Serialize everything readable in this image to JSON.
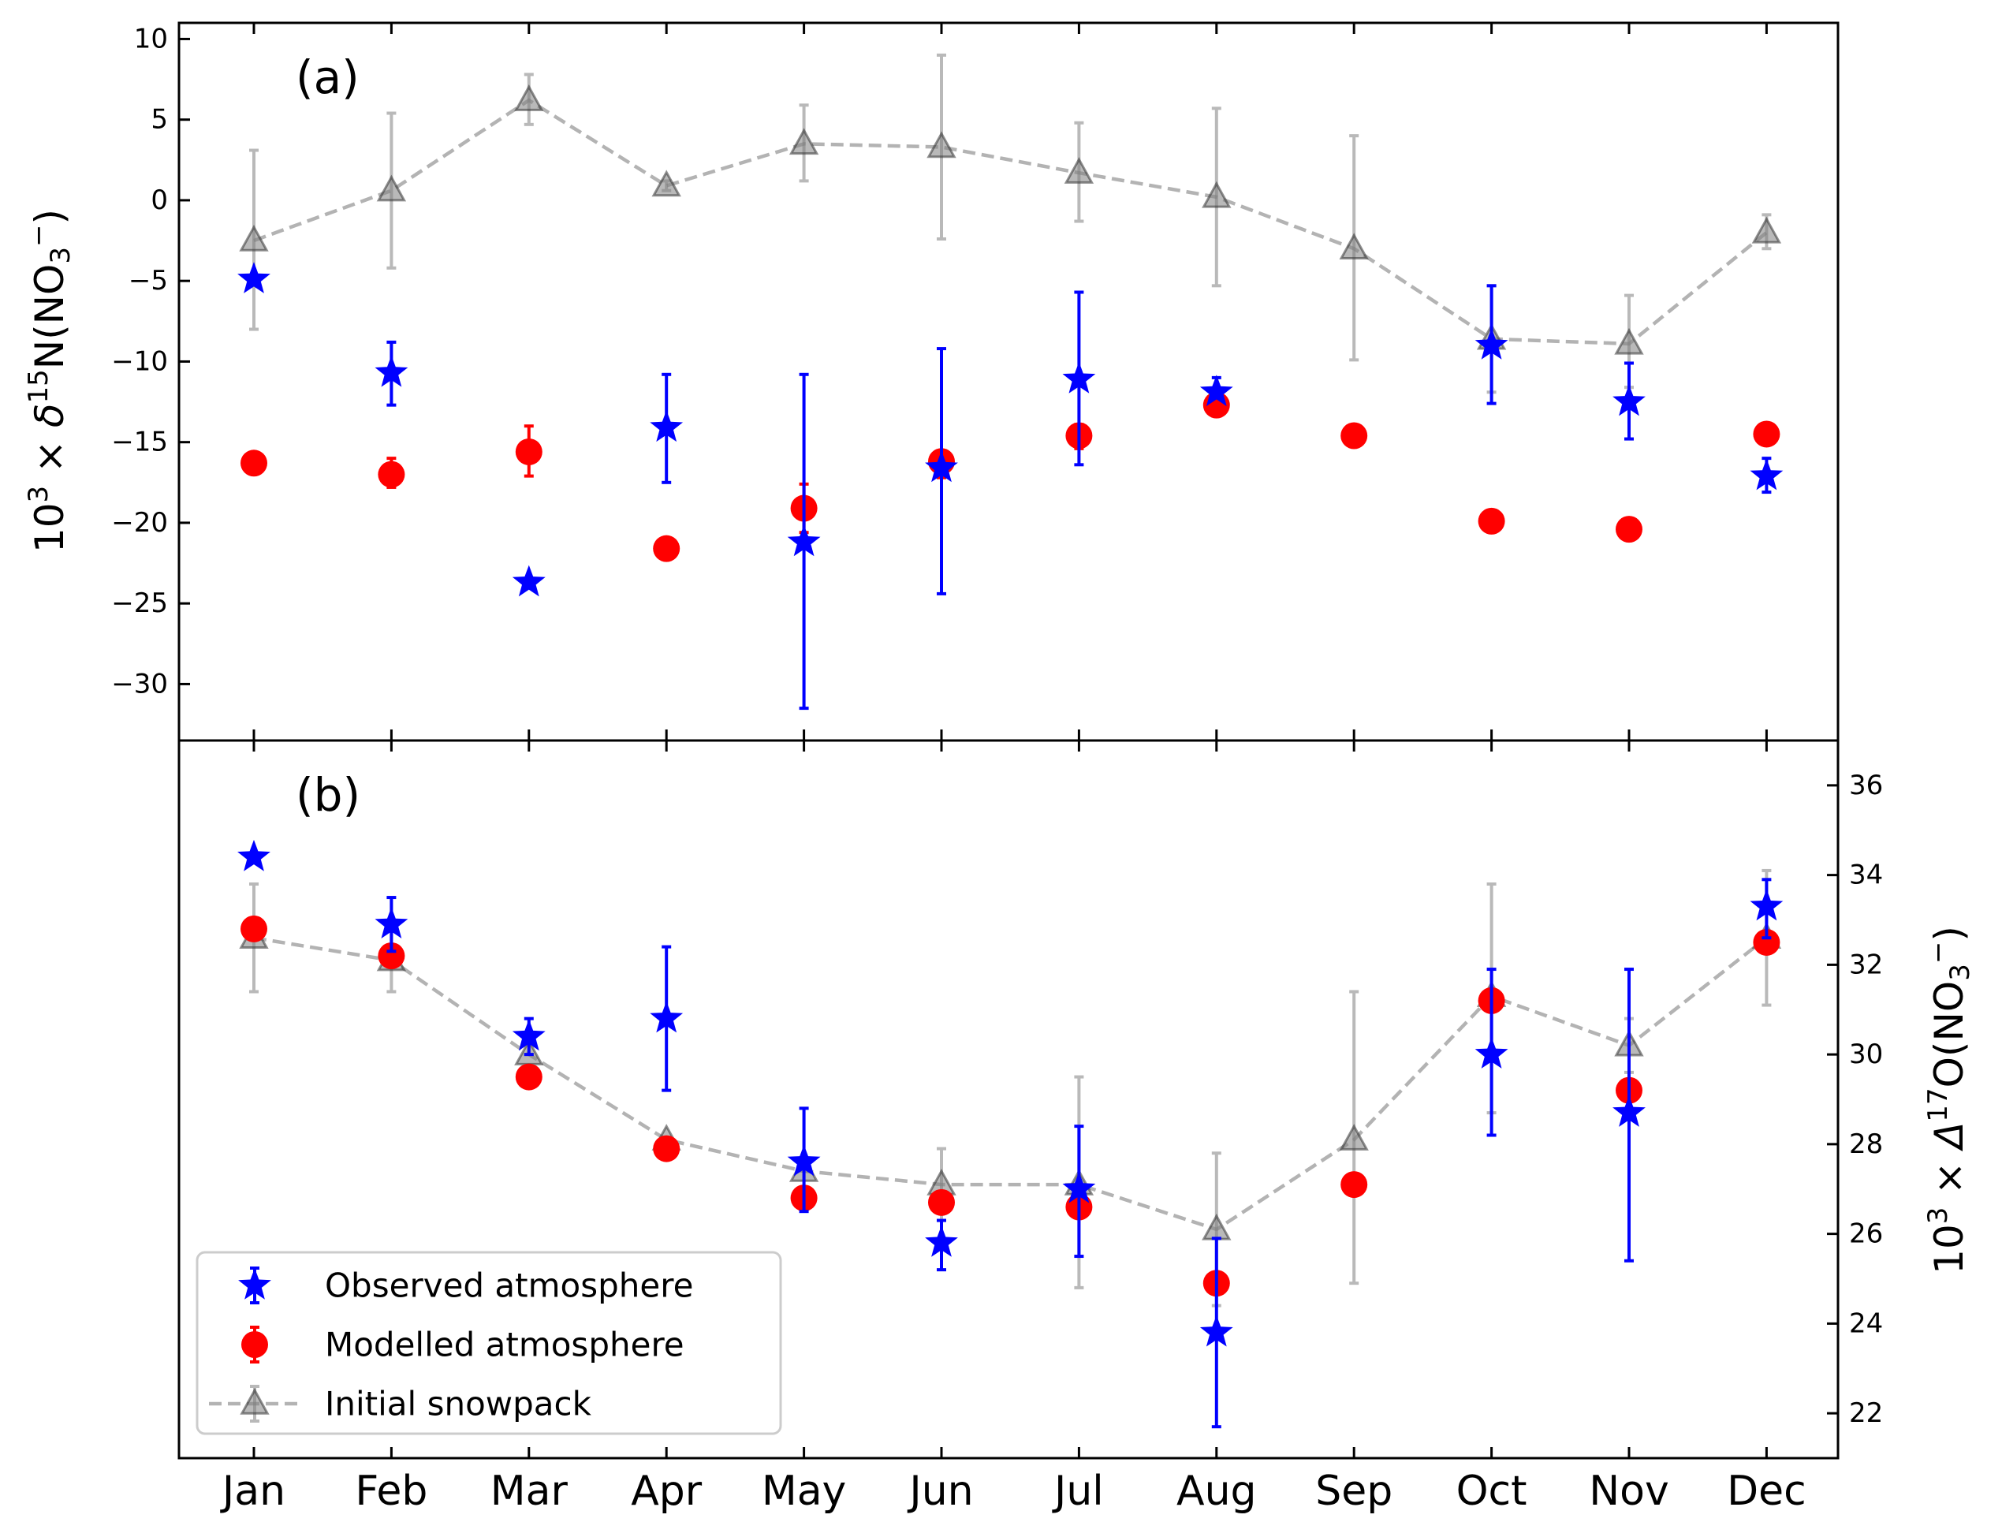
{
  "chart_data": [
    {
      "type": "scatter",
      "panel_label": "(a)",
      "ylabel": {
        "prefix": "10",
        "prefix_sup": "3",
        "mult": " × ",
        "symbol": "δ",
        "iso_sup": "15",
        "element": "N(NO",
        "sub": "3",
        "charge": "−",
        "close": ")"
      },
      "y_axis_side": "left",
      "ylim": [
        -33.5,
        11
      ],
      "yticks": [
        10,
        5,
        0,
        -5,
        -10,
        -15,
        -20,
        -25,
        -30
      ],
      "ytick_labels": [
        "10",
        "5",
        "0",
        "−5",
        "−10",
        "−15",
        "−20",
        "−25",
        "−30"
      ],
      "categories": [
        "Jan",
        "Feb",
        "Mar",
        "Apr",
        "May",
        "Jun",
        "Jul",
        "Aug",
        "Sep",
        "Oct",
        "Nov",
        "Dec"
      ],
      "grid": false,
      "series": [
        {
          "name": "Initial snowpack",
          "color": "#808080",
          "marker": "triangle",
          "linestyle": "dashed",
          "values": [
            -2.5,
            0.6,
            6.2,
            0.9,
            3.5,
            3.3,
            1.7,
            0.2,
            -3.0,
            -8.6,
            -8.9,
            -2.0
          ],
          "err_low": [
            -8.0,
            -4.2,
            4.7,
            0.6,
            1.2,
            -2.4,
            -1.3,
            -5.3,
            -9.9,
            -11.9,
            -11.6,
            -3.0
          ],
          "err_high": [
            3.1,
            5.4,
            7.8,
            1.2,
            5.9,
            9.0,
            4.8,
            5.7,
            4.0,
            -5.3,
            -5.9,
            -0.9
          ]
        },
        {
          "name": "Observed atmosphere",
          "color": "#0000ff",
          "marker": "star",
          "linestyle": "none",
          "values": [
            -4.9,
            -10.7,
            -23.7,
            -14.1,
            -21.2,
            -16.6,
            -11.1,
            -11.9,
            null,
            -9.0,
            -12.5,
            -17.1
          ],
          "err_low": [
            null,
            -12.7,
            null,
            -17.5,
            -31.5,
            -24.4,
            -16.4,
            null,
            null,
            -12.6,
            -14.8,
            -18.1
          ],
          "err_high": [
            null,
            -8.8,
            null,
            -10.8,
            -10.8,
            -9.2,
            -5.7,
            -11.0,
            null,
            -5.3,
            -10.1,
            -16.0
          ]
        },
        {
          "name": "Modelled atmosphere",
          "color": "#ff0000",
          "marker": "circle",
          "linestyle": "none",
          "values": [
            -16.3,
            -17.0,
            -15.6,
            -21.6,
            -19.1,
            -16.2,
            -14.6,
            -12.7,
            -14.6,
            -19.9,
            -20.4,
            -14.5
          ],
          "err_low": [
            null,
            -17.8,
            -17.1,
            null,
            -20.6,
            -17.2,
            -15.4,
            null,
            null,
            null,
            null,
            null
          ],
          "err_high": [
            null,
            -16.0,
            -14.0,
            null,
            -17.6,
            -15.6,
            -13.9,
            null,
            null,
            null,
            null,
            null
          ]
        }
      ]
    },
    {
      "type": "scatter",
      "panel_label": "(b)",
      "ylabel": {
        "prefix": "10",
        "prefix_sup": "3",
        "mult": " × ",
        "symbol": "Δ",
        "iso_sup": "17",
        "element": "O(NO",
        "sub": "3",
        "charge": "−",
        "close": ")"
      },
      "y_axis_side": "right",
      "ylim": [
        21.0,
        37.0
      ],
      "yticks": [
        22,
        24,
        26,
        28,
        30,
        32,
        34,
        36
      ],
      "ytick_labels": [
        "22",
        "24",
        "26",
        "28",
        "30",
        "32",
        "34",
        "36"
      ],
      "categories": [
        "Jan",
        "Feb",
        "Mar",
        "Apr",
        "May",
        "Jun",
        "Jul",
        "Aug",
        "Sep",
        "Oct",
        "Nov",
        "Dec"
      ],
      "grid": false,
      "legend": {
        "placement": "lower-left",
        "entries": [
          "Observed atmosphere",
          "Modelled atmosphere",
          "Initial snowpack"
        ]
      },
      "series": [
        {
          "name": "Initial snowpack",
          "color": "#808080",
          "marker": "triangle",
          "linestyle": "dashed",
          "values": [
            32.6,
            32.1,
            30.0,
            28.1,
            27.4,
            27.1,
            27.1,
            26.1,
            28.1,
            31.3,
            30.2,
            32.6
          ],
          "err_low": [
            31.4,
            31.4,
            30.0,
            28.1,
            27.4,
            26.3,
            24.8,
            24.4,
            24.9,
            28.7,
            29.6,
            31.1
          ],
          "err_high": [
            33.8,
            32.8,
            30.0,
            28.1,
            27.4,
            27.9,
            29.5,
            27.8,
            31.4,
            33.8,
            30.8,
            34.1
          ]
        },
        {
          "name": "Observed atmosphere",
          "color": "#0000ff",
          "marker": "star",
          "linestyle": "none",
          "values": [
            34.4,
            32.9,
            30.4,
            30.8,
            27.6,
            25.8,
            27.0,
            23.8,
            null,
            30.0,
            28.7,
            33.3
          ],
          "err_low": [
            null,
            32.3,
            30.0,
            29.2,
            26.5,
            25.2,
            25.5,
            21.7,
            null,
            28.2,
            25.4,
            32.6
          ],
          "err_high": [
            null,
            33.5,
            30.8,
            32.4,
            28.8,
            26.3,
            28.4,
            25.9,
            null,
            31.9,
            31.9,
            33.9
          ]
        },
        {
          "name": "Modelled atmosphere",
          "color": "#ff0000",
          "marker": "circle",
          "linestyle": "none",
          "values": [
            32.8,
            32.2,
            29.5,
            27.9,
            26.8,
            26.7,
            26.6,
            24.9,
            27.1,
            31.2,
            29.2,
            32.5
          ],
          "err_low": [
            null,
            null,
            null,
            null,
            null,
            null,
            null,
            null,
            null,
            null,
            null,
            null
          ],
          "err_high": [
            null,
            null,
            null,
            null,
            null,
            null,
            null,
            null,
            null,
            null,
            null,
            null
          ]
        }
      ]
    }
  ]
}
